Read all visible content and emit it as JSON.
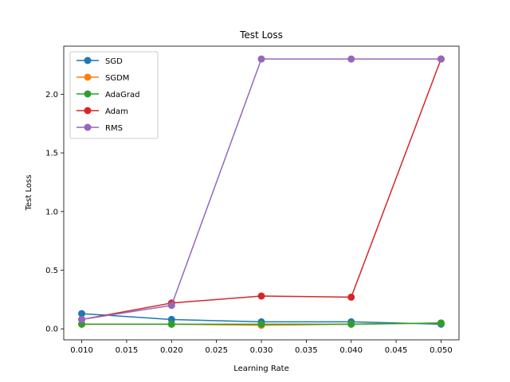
{
  "chart_data": {
    "type": "line",
    "title": "Test Loss",
    "xlabel": "Learning Rate",
    "ylabel": "Test Loss",
    "x": [
      0.01,
      0.02,
      0.03,
      0.04,
      0.05
    ],
    "xlim": [
      0.008,
      0.052
    ],
    "ylim": [
      -0.0934,
      2.4096
    ],
    "xticks": [
      0.01,
      0.015,
      0.02,
      0.025,
      0.03,
      0.035,
      0.04,
      0.045,
      0.05
    ],
    "xtick_labels": [
      "0.010",
      "0.015",
      "0.020",
      "0.025",
      "0.030",
      "0.035",
      "0.040",
      "0.045",
      "0.050"
    ],
    "yticks": [
      0.0,
      0.5,
      1.0,
      1.5,
      2.0
    ],
    "ytick_labels": [
      "0.0",
      "0.5",
      "1.0",
      "1.5",
      "2.0"
    ],
    "grid": false,
    "legend_position": "top-left",
    "series": [
      {
        "name": "SGD",
        "color": "#1f77b4",
        "values": [
          0.13,
          0.08,
          0.06,
          0.06,
          0.04
        ]
      },
      {
        "name": "SGDM",
        "color": "#ff7f0e",
        "values": [
          0.04,
          0.04,
          0.03,
          0.04,
          0.05
        ]
      },
      {
        "name": "AdaGrad",
        "color": "#2ca02c",
        "values": [
          0.04,
          0.04,
          0.04,
          0.04,
          0.05
        ]
      },
      {
        "name": "Adam",
        "color": "#d62728",
        "values": [
          0.08,
          0.22,
          0.28,
          0.27,
          2.3
        ]
      },
      {
        "name": "RMS",
        "color": "#9467bd",
        "values": [
          0.08,
          0.2,
          2.3,
          2.3,
          2.3
        ]
      }
    ]
  }
}
